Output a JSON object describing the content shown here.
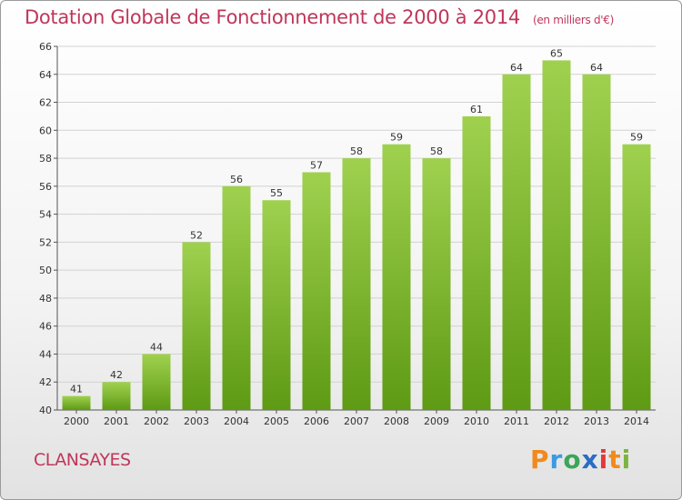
{
  "header": {
    "title": "Dotation Globale de Fonctionnement de 2000 à 2014",
    "subtitle": "(en milliers d'€)"
  },
  "footer": {
    "commune": "CLANSAYES",
    "logo": [
      "P",
      "r",
      "o",
      "x",
      "i",
      "t",
      "i"
    ]
  },
  "colors": {
    "accent": "#c0365a",
    "bar_top": "#9fd14f",
    "bar_bottom": "#5e9a14",
    "grid": "#d2d2d2",
    "logo": [
      "#f08a1c",
      "#3c9be0",
      "#3aa657",
      "#2b6cc4",
      "#e03a3a",
      "#f08a1c",
      "#7cb342"
    ]
  },
  "chart_data": {
    "type": "bar",
    "title": "Dotation Globale de Fonctionnement de 2000 à 2014",
    "subtitle": "(en milliers d'€)",
    "categories": [
      "2000",
      "2001",
      "2002",
      "2003",
      "2004",
      "2005",
      "2006",
      "2007",
      "2008",
      "2009",
      "2010",
      "2011",
      "2012",
      "2013",
      "2014"
    ],
    "values": [
      41,
      42,
      44,
      52,
      56,
      55,
      57,
      58,
      59,
      58,
      61,
      64,
      65,
      64,
      59
    ],
    "xlabel": "",
    "ylabel": "",
    "ylim": [
      40,
      66
    ],
    "yticks": [
      40,
      42,
      44,
      46,
      48,
      50,
      52,
      54,
      56,
      58,
      60,
      62,
      64,
      66
    ],
    "grid": true,
    "data_labels": true
  }
}
